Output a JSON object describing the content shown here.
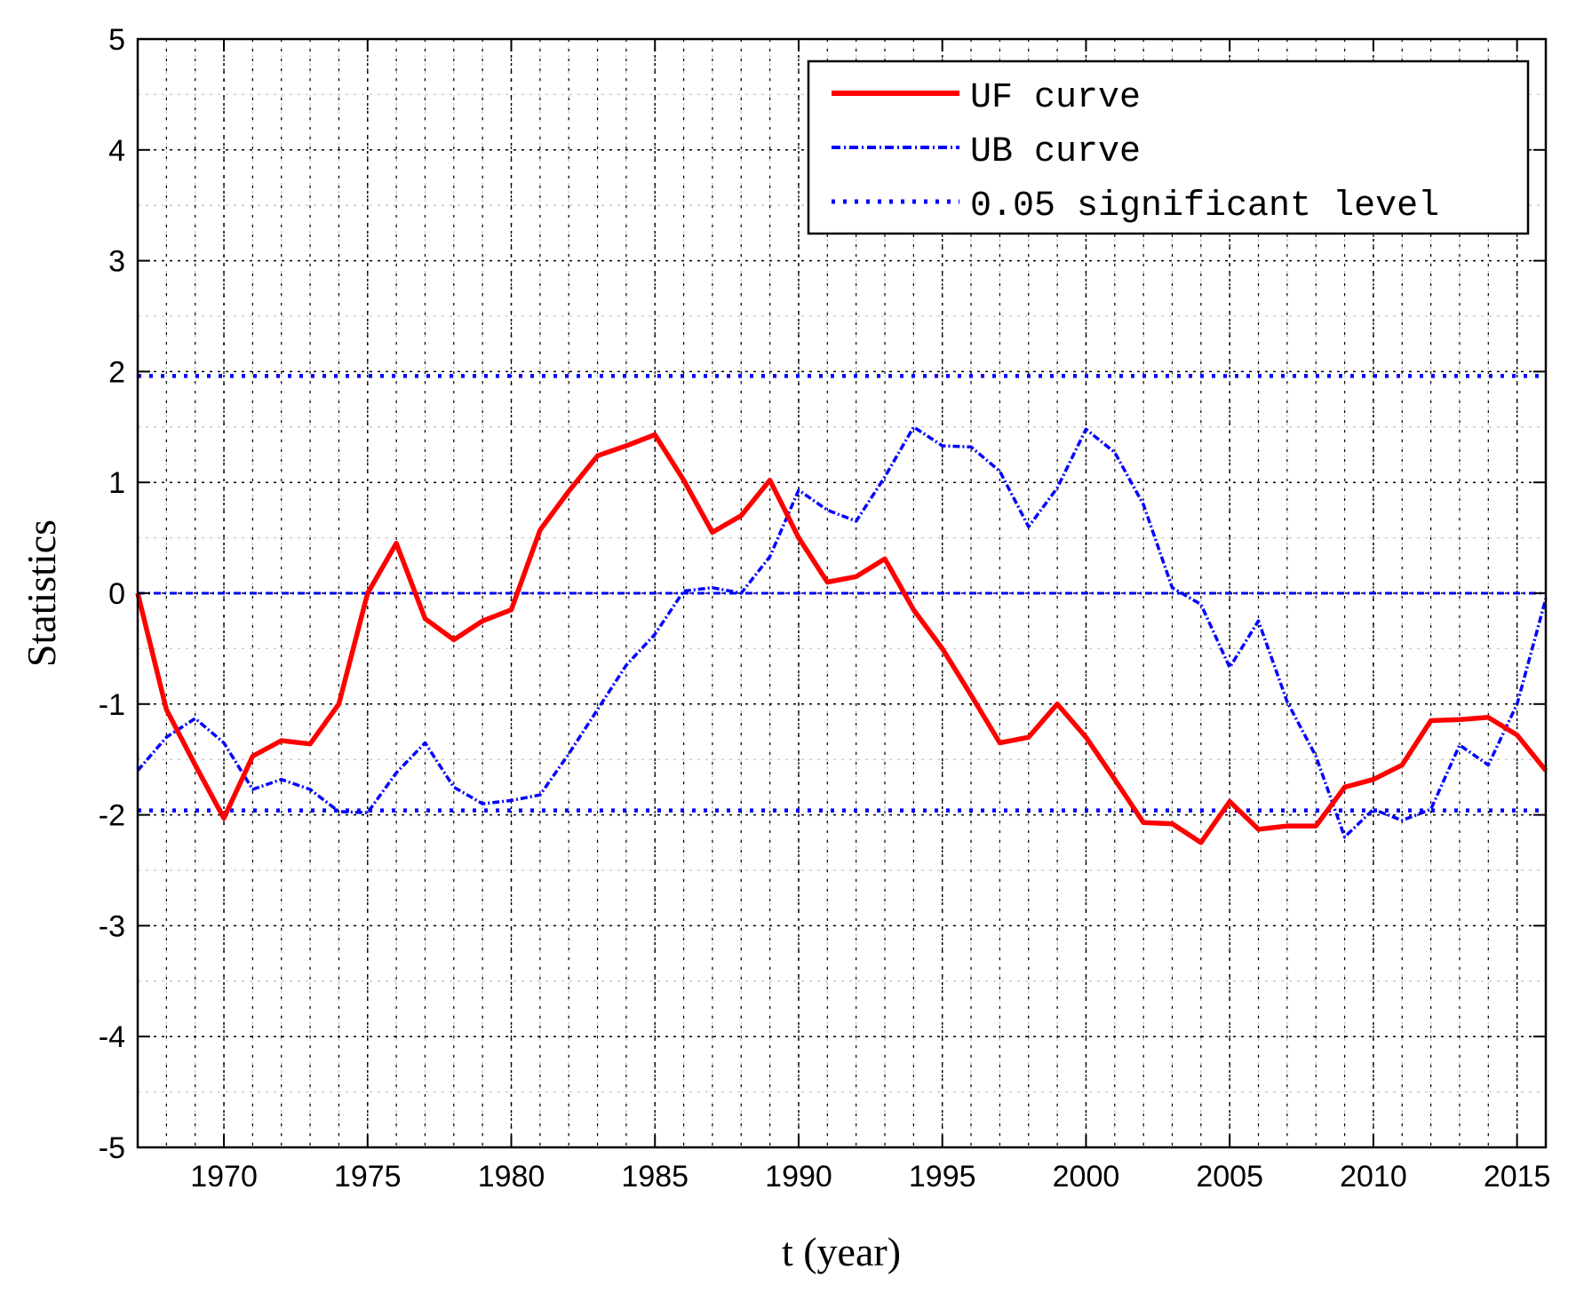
{
  "chart_data": {
    "type": "line",
    "xlabel": "t (year)",
    "ylabel": "Statistics",
    "xlim": [
      1967,
      2016
    ],
    "ylim": [
      -5,
      5
    ],
    "x_ticks": [
      1970,
      1975,
      1980,
      1985,
      1990,
      1995,
      2000,
      2005,
      2010,
      2015
    ],
    "y_ticks": [
      -5,
      -4,
      -3,
      -2,
      -1,
      0,
      1,
      2,
      3,
      4,
      5
    ],
    "x_minor_ticks": [
      1968,
      1969,
      1970,
      1971,
      1972,
      1973,
      1974,
      1975,
      1976,
      1977,
      1978,
      1979,
      1980,
      1981,
      1982,
      1983,
      1984,
      1985,
      1986,
      1987,
      1988,
      1989,
      1990,
      1991,
      1992,
      1993,
      1994,
      1995,
      1996,
      1997,
      1998,
      1999,
      2000,
      2001,
      2002,
      2003,
      2004,
      2005,
      2006,
      2007,
      2008,
      2009,
      2010,
      2011,
      2012,
      2013,
      2014,
      2015
    ],
    "y_minor_ticks": [
      -4.5,
      -3.5,
      -2.5,
      -1.5,
      -0.5,
      0.5,
      1.5,
      2.5,
      3.5,
      4.5
    ],
    "grid": true,
    "legend_position": "top-right",
    "x": [
      1967,
      1968,
      1969,
      1970,
      1971,
      1972,
      1973,
      1974,
      1975,
      1976,
      1977,
      1978,
      1979,
      1980,
      1981,
      1982,
      1983,
      1984,
      1985,
      1986,
      1987,
      1988,
      1989,
      1990,
      1991,
      1992,
      1993,
      1994,
      1995,
      1996,
      1997,
      1998,
      1999,
      2000,
      2001,
      2002,
      2003,
      2004,
      2005,
      2006,
      2007,
      2008,
      2009,
      2010,
      2011,
      2012,
      2013,
      2014,
      2015,
      2016
    ],
    "series": [
      {
        "name": "UF curve",
        "color": "#ff0000",
        "style": "solid",
        "values": [
          0.0,
          -1.05,
          -1.55,
          -2.03,
          -1.47,
          -1.33,
          -1.36,
          -1.0,
          0.0,
          0.45,
          -0.23,
          -0.42,
          -0.25,
          -0.15,
          0.57,
          0.92,
          1.24,
          1.33,
          1.43,
          1.02,
          0.55,
          0.7,
          1.02,
          0.5,
          0.1,
          0.15,
          0.31,
          -0.15,
          -0.5,
          -0.92,
          -1.35,
          -1.3,
          -1.0,
          -1.3,
          -1.68,
          -2.07,
          -2.08,
          -2.25,
          -1.88,
          -2.13,
          -2.1,
          -2.1,
          -1.75,
          -1.68,
          -1.55,
          -1.15,
          -1.14,
          -1.12,
          -1.28,
          -1.6
        ]
      },
      {
        "name": "UB curve",
        "color": "#0000ff",
        "style": "dashdot",
        "values": [
          -1.6,
          -1.3,
          -1.13,
          -1.35,
          -1.77,
          -1.68,
          -1.77,
          -1.97,
          -1.98,
          -1.62,
          -1.35,
          -1.75,
          -1.9,
          -1.87,
          -1.82,
          -1.45,
          -1.05,
          -0.65,
          -0.37,
          0.02,
          0.05,
          0.0,
          0.33,
          0.93,
          0.75,
          0.65,
          1.05,
          1.5,
          1.33,
          1.32,
          1.1,
          0.6,
          0.95,
          1.48,
          1.27,
          0.8,
          0.05,
          -0.1,
          -0.67,
          -0.25,
          -0.98,
          -1.47,
          -2.2,
          -1.95,
          -2.05,
          -1.95,
          -1.37,
          -1.55,
          -1.0,
          -0.05
        ]
      },
      {
        "name": "0.05 significant level",
        "color": "#0000ff",
        "style": "dotted",
        "levels": [
          1.96,
          -1.96
        ]
      }
    ],
    "reference_line": {
      "y": 0,
      "color": "#0000ff",
      "style": "dashdot"
    }
  }
}
